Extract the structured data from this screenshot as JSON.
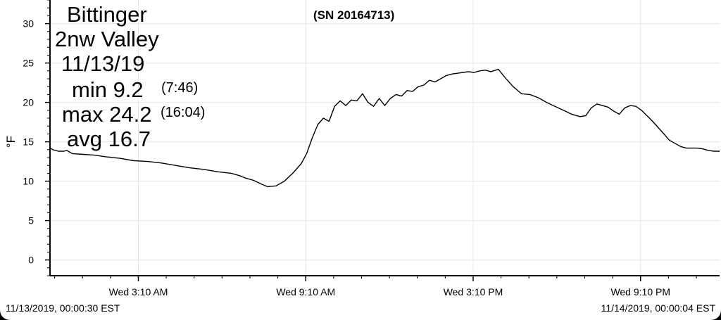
{
  "header": {
    "serial": "(SN 20164713)"
  },
  "overlay": {
    "station_line1": "Bittinger",
    "station_line2": "2nw Valley",
    "date": "11/13/19",
    "min_label": "min 9.2",
    "min_time": "(7:46)",
    "max_label": "max 24.2",
    "max_time": "(16:04)",
    "avg_label": "avg 16.7"
  },
  "footer": {
    "start": "11/13/2019, 00:00:30 EST",
    "end": "11/14/2019, 00:00:04 EST"
  },
  "colors": {
    "line": "#000000",
    "grid": "#e6e6e6",
    "axis": "#000000",
    "background": "#ffffff"
  },
  "chart_data": {
    "type": "line",
    "ylabel": "°F",
    "ylim": [
      -2,
      33
    ],
    "xlim": [
      0,
      24
    ],
    "yticks": [
      0,
      5,
      10,
      15,
      20,
      25,
      30
    ],
    "xticks": [
      {
        "x": 3.1667,
        "label": "Wed 3:10 AM"
      },
      {
        "x": 9.1667,
        "label": "Wed 9:10 AM"
      },
      {
        "x": 15.1667,
        "label": "Wed 3:10 PM"
      },
      {
        "x": 21.1667,
        "label": "Wed 9:10 PM"
      }
    ],
    "grid": true,
    "series": [
      {
        "x": [
          0.0,
          0.1,
          0.3,
          0.5,
          0.6,
          0.8,
          1.2,
          1.6,
          2.0,
          2.5,
          3.0,
          3.5,
          4.0,
          4.5,
          5.0,
          5.5,
          6.0,
          6.5,
          6.8,
          7.0,
          7.3,
          7.6,
          7.8,
          8.1,
          8.4,
          8.7,
          8.9,
          9.0,
          9.2,
          9.4,
          9.6,
          9.8,
          10.0,
          10.2,
          10.4,
          10.6,
          10.8,
          11.0,
          11.2,
          11.4,
          11.6,
          11.8,
          12.0,
          12.2,
          12.4,
          12.6,
          12.8,
          13.0,
          13.2,
          13.4,
          13.6,
          13.8,
          14.0,
          14.2,
          14.4,
          14.6,
          14.8,
          15.0,
          15.2,
          15.4,
          15.6,
          15.8,
          16.07,
          16.3,
          16.6,
          16.9,
          17.2,
          17.5,
          17.8,
          18.1,
          18.4,
          18.7,
          19.0,
          19.2,
          19.4,
          19.6,
          19.8,
          20.0,
          20.2,
          20.4,
          20.6,
          20.8,
          21.0,
          21.2,
          21.4,
          21.6,
          21.8,
          22.0,
          22.2,
          22.4,
          22.6,
          22.8,
          23.0,
          23.2,
          23.4,
          23.6,
          23.8,
          24.0
        ],
        "y": [
          14.2,
          14.0,
          13.8,
          13.8,
          13.9,
          13.5,
          13.4,
          13.3,
          13.1,
          12.9,
          12.6,
          12.5,
          12.3,
          12.0,
          11.7,
          11.5,
          11.2,
          11.0,
          10.7,
          10.4,
          10.1,
          9.6,
          9.3,
          9.4,
          10.0,
          11.0,
          11.8,
          12.2,
          13.5,
          15.5,
          17.2,
          18.0,
          17.6,
          19.5,
          20.2,
          19.6,
          20.3,
          20.2,
          21.1,
          20.0,
          19.5,
          20.5,
          19.6,
          20.5,
          21.0,
          20.8,
          21.5,
          21.4,
          22.0,
          22.2,
          22.8,
          22.6,
          23.0,
          23.4,
          23.6,
          23.7,
          23.8,
          23.9,
          23.8,
          24.0,
          24.1,
          23.9,
          24.2,
          23.2,
          22.0,
          21.1,
          21.0,
          20.6,
          20.0,
          19.5,
          19.0,
          18.5,
          18.2,
          18.3,
          19.3,
          19.8,
          19.6,
          19.4,
          18.9,
          18.5,
          19.3,
          19.6,
          19.5,
          19.0,
          18.3,
          17.6,
          16.8,
          16.0,
          15.2,
          14.8,
          14.4,
          14.2,
          14.2,
          14.2,
          14.1,
          13.9,
          13.8,
          13.8
        ]
      }
    ]
  }
}
